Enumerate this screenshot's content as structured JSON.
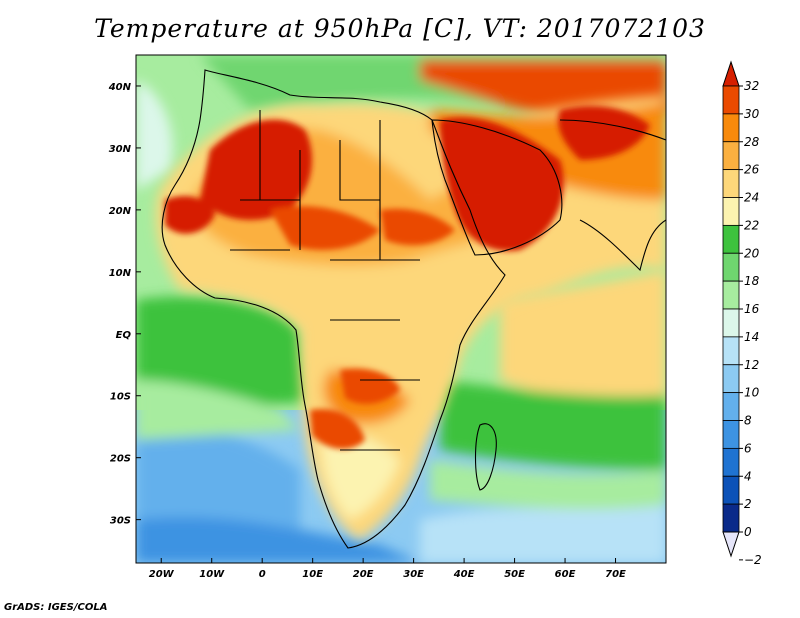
{
  "title": "Temperature at 950hPa [C], VT: 2017072103",
  "footer": "GrADS: IGES/COLA",
  "map": {
    "lon_ticks": [
      {
        "value": -20,
        "label": "20W"
      },
      {
        "value": -10,
        "label": "10W"
      },
      {
        "value": 0,
        "label": "0"
      },
      {
        "value": 10,
        "label": "10E"
      },
      {
        "value": 20,
        "label": "20E"
      },
      {
        "value": 30,
        "label": "30E"
      },
      {
        "value": 40,
        "label": "40E"
      },
      {
        "value": 50,
        "label": "50E"
      },
      {
        "value": 60,
        "label": "60E"
      },
      {
        "value": 70,
        "label": "70E"
      }
    ],
    "lat_ticks": [
      {
        "value": 40,
        "label": "40N"
      },
      {
        "value": 30,
        "label": "30N"
      },
      {
        "value": 20,
        "label": "20N"
      },
      {
        "value": 10,
        "label": "10N"
      },
      {
        "value": 0,
        "label": "EQ"
      },
      {
        "value": -10,
        "label": "10S"
      },
      {
        "value": -20,
        "label": "20S"
      },
      {
        "value": -30,
        "label": "30S"
      }
    ]
  },
  "colorbar": {
    "levels": [
      32,
      30,
      28,
      26,
      24,
      22,
      20,
      18,
      16,
      14,
      12,
      10,
      8,
      6,
      4,
      2,
      0,
      -2
    ],
    "labels": [
      "32",
      "30",
      "28",
      "26",
      "24",
      "22",
      "20",
      "18",
      "16",
      "14",
      "12",
      "10",
      "8",
      "6",
      "4",
      "2",
      "0",
      "−2"
    ],
    "colors": [
      "#d61f00",
      "#ea4a00",
      "#f88a0c",
      "#fbb040",
      "#fdd77a",
      "#fcf3b0",
      "#3ec23e",
      "#6fd66f",
      "#a7ec9f",
      "#dcf7ea",
      "#b7e2f7",
      "#8ccaf2",
      "#63b0ec",
      "#3d93e2",
      "#1f73d2",
      "#0c52b8",
      "#0a2a8a",
      "#e6e6fa"
    ]
  }
}
